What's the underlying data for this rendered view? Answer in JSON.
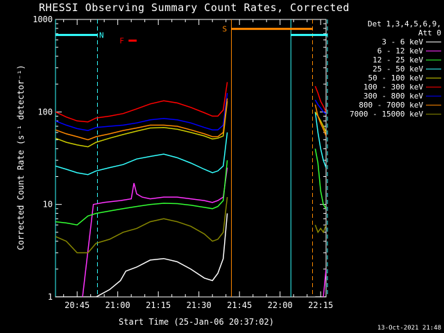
{
  "title": "RHESSI Observing Summary Count Rates, Corrected",
  "legend": {
    "header_line1": "Det 1,3,4,5,6,9,",
    "header_line2": "Att 0",
    "items": [
      {
        "label": "3 - 6 keV",
        "color": "#ffffff"
      },
      {
        "label": "6 - 12 keV",
        "color": "#ff33ff"
      },
      {
        "label": "12 - 25 keV",
        "color": "#33ff33"
      },
      {
        "label": "25 - 50 keV",
        "color": "#33ffff"
      },
      {
        "label": "50 - 100 keV",
        "color": "#cccc00"
      },
      {
        "label": "100 - 300 keV",
        "color": "#ff0000"
      },
      {
        "label": "300 - 800 keV",
        "color": "#0000ff"
      },
      {
        "label": "800 - 7000 keV",
        "color": "#ff8800"
      },
      {
        "label": "7000 - 15000 keV",
        "color": "#888800"
      }
    ]
  },
  "footer": "13-Oct-2021 21:48",
  "chart_data": {
    "type": "line",
    "title": "RHESSI Observing Summary Count Rates, Corrected",
    "xlabel": "Start Time (25-Jan-06 20:37:02)",
    "ylabel": "Corrected Count Rate (s⁻¹ detector⁻¹)",
    "x_units": "minutes after 20:37:02",
    "xlim": [
      0,
      100
    ],
    "ylim": [
      1,
      1000
    ],
    "yscale": "log",
    "x_ticks": [
      {
        "x": 8,
        "label": "20:45"
      },
      {
        "x": 23,
        "label": "21:00"
      },
      {
        "x": 38,
        "label": "21:15"
      },
      {
        "x": 53,
        "label": "21:30"
      },
      {
        "x": 68,
        "label": "21:45"
      },
      {
        "x": 83,
        "label": "22:00"
      },
      {
        "x": 98,
        "label": "22:15"
      }
    ],
    "y_ticks": [
      {
        "y": 1,
        "label": "1"
      },
      {
        "y": 10,
        "label": "10"
      },
      {
        "y": 100,
        "label": "100"
      },
      {
        "y": 1000,
        "label": "1000"
      }
    ],
    "annotations": [
      {
        "text": "N",
        "x": 17,
        "y": 680,
        "color": "#33ffff"
      },
      {
        "text": "F",
        "x": 24.5,
        "y": 590,
        "color": "#ff0000"
      },
      {
        "text": "S",
        "x": 62.5,
        "y": 790,
        "color": "#ff8800"
      }
    ],
    "bars": [
      {
        "name": "night",
        "color": "#33ffff",
        "x0": 0,
        "x1": 15.5,
        "y": 680
      },
      {
        "name": "flare",
        "color": "#ff0000",
        "x0": 27,
        "x1": 30,
        "y": 590
      },
      {
        "name": "saa",
        "color": "#ff8800",
        "x0": 65,
        "x1": 95,
        "y": 790
      },
      {
        "name": "night",
        "color": "#33ffff",
        "x0": 87,
        "x1": 100.5,
        "y": 680
      }
    ],
    "vlines": [
      {
        "x": 0,
        "color": "#33ffff",
        "dashed": false
      },
      {
        "x": 15.5,
        "color": "#33ffff",
        "dashed": true
      },
      {
        "x": 65,
        "color": "#ff8800",
        "dashed": false
      },
      {
        "x": 87,
        "color": "#33ffff",
        "dashed": false
      },
      {
        "x": 95,
        "color": "#ff8800",
        "dashed": true
      },
      {
        "x": 100.5,
        "color": "#33ffff",
        "dashed": true
      }
    ],
    "series": [
      {
        "name": "3 - 6 keV",
        "color": "#ffffff",
        "x": [
          0,
          10,
          15,
          20,
          24,
          26,
          30,
          35,
          40,
          45,
          50,
          55,
          58,
          60,
          62,
          63.5
        ],
        "y": [
          1,
          1,
          1,
          1.2,
          1.5,
          1.9,
          2.1,
          2.5,
          2.6,
          2.4,
          2.0,
          1.6,
          1.5,
          1.8,
          2.6,
          8
        ],
        "x2": [
          96,
          97,
          98,
          99,
          100
        ],
        "y2": [
          1,
          1,
          1,
          1,
          1
        ]
      },
      {
        "name": "6 - 12 keV",
        "color": "#ff33ff",
        "x": [
          10,
          14,
          18,
          24,
          28,
          29,
          30,
          32,
          35,
          40,
          45,
          50,
          55,
          58,
          60,
          62,
          63.5
        ],
        "y": [
          1,
          10,
          10.5,
          11,
          11.5,
          17,
          13,
          12,
          11.5,
          12,
          12,
          11.5,
          11,
          10.5,
          11,
          12,
          25
        ],
        "x2": [
          99,
          100
        ],
        "y2": [
          1,
          2
        ]
      },
      {
        "name": "12 - 25 keV",
        "color": "#33ff33",
        "x": [
          0,
          4,
          8,
          12,
          15,
          20,
          25,
          30,
          35,
          40,
          45,
          50,
          55,
          58,
          60,
          62,
          63.5
        ],
        "y": [
          6.5,
          6.3,
          6.0,
          7.5,
          8.0,
          8.5,
          9.0,
          9.5,
          10,
          10.3,
          10.2,
          9.8,
          9.3,
          9.0,
          9.5,
          11,
          30
        ],
        "x2": [
          96,
          97,
          98,
          99,
          100
        ],
        "y2": [
          40,
          28,
          14,
          10,
          9
        ]
      },
      {
        "name": "25 - 50 keV",
        "color": "#33ffff",
        "x": [
          0,
          4,
          8,
          12,
          15,
          20,
          25,
          30,
          35,
          40,
          45,
          50,
          55,
          58,
          60,
          62,
          63.5
        ],
        "y": [
          26,
          24,
          22,
          21,
          23,
          25,
          27,
          31,
          33,
          35,
          32,
          28,
          24,
          22,
          23,
          26,
          60
        ],
        "x2": [
          96,
          97,
          98,
          99,
          100
        ],
        "y2": [
          100,
          60,
          40,
          30,
          25
        ]
      },
      {
        "name": "50 - 100 keV",
        "color": "#cccc00",
        "x": [
          0,
          4,
          8,
          12,
          15,
          20,
          25,
          30,
          35,
          40,
          45,
          50,
          55,
          58,
          60,
          62,
          63.5
        ],
        "y": [
          52,
          47,
          44,
          42,
          47,
          52,
          57,
          62,
          67,
          68,
          65,
          60,
          55,
          51,
          52,
          55,
          130
        ],
        "x2": [
          96,
          97,
          98,
          99,
          100
        ],
        "y2": [
          100,
          90,
          80,
          70,
          60
        ]
      },
      {
        "name": "100 - 300 keV",
        "color": "#ff0000",
        "x": [
          0,
          4,
          8,
          12,
          15,
          20,
          25,
          30,
          35,
          40,
          45,
          50,
          55,
          58,
          60,
          62,
          63.5
        ],
        "y": [
          100,
          88,
          80,
          78,
          86,
          90,
          96,
          108,
          122,
          132,
          125,
          112,
          98,
          90,
          90,
          105,
          210
        ],
        "x2": [
          96,
          97,
          98,
          99,
          100
        ],
        "y2": [
          190,
          160,
          130,
          115,
          100
        ]
      },
      {
        "name": "300 - 800 keV",
        "color": "#0000ff",
        "x": [
          0,
          4,
          8,
          12,
          15,
          20,
          25,
          30,
          35,
          40,
          45,
          50,
          55,
          58,
          60,
          62,
          63.5
        ],
        "y": [
          80,
          72,
          66,
          63,
          68,
          70,
          72,
          76,
          82,
          85,
          82,
          76,
          68,
          64,
          64,
          72,
          160
        ],
        "x2": [
          96,
          97,
          98,
          99,
          100
        ],
        "y2": [
          135,
          120,
          110,
          100,
          95
        ]
      },
      {
        "name": "800 - 7000 keV",
        "color": "#ff8800",
        "x": [
          0,
          4,
          8,
          12,
          15,
          20,
          25,
          30,
          35,
          40,
          45,
          50,
          55,
          58,
          60,
          62,
          63.5
        ],
        "y": [
          64,
          58,
          54,
          50,
          54,
          58,
          63,
          67,
          72,
          72,
          70,
          64,
          58,
          54,
          54,
          60,
          140
        ],
        "x2": [
          96,
          97,
          98,
          99,
          100
        ],
        "y2": [
          120,
          90,
          75,
          65,
          55
        ]
      },
      {
        "name": "7000 - 15000 keV",
        "color": "#888800",
        "x": [
          0,
          4,
          8,
          12,
          15,
          20,
          25,
          30,
          35,
          40,
          45,
          50,
          55,
          58,
          60,
          62,
          63.5
        ],
        "y": [
          4.5,
          4.0,
          3.0,
          3.0,
          3.8,
          4.2,
          5.0,
          5.5,
          6.5,
          7.0,
          6.5,
          5.8,
          4.8,
          4.0,
          4.2,
          5.0,
          12
        ],
        "x2": [
          96,
          97,
          98,
          99,
          100
        ],
        "y2": [
          6,
          5,
          5.5,
          5,
          6
        ]
      }
    ]
  }
}
